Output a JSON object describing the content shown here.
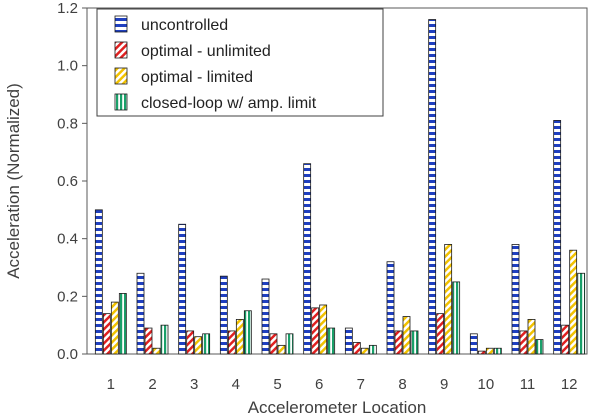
{
  "chart_data": {
    "type": "bar",
    "xlabel": "Accelerometer Location",
    "ylabel": "Acceleration (Normalized)",
    "ylim": [
      0,
      1.2
    ],
    "yticks": [
      "0.0",
      "0.2",
      "0.4",
      "0.6",
      "0.8",
      "1.0",
      "1.2"
    ],
    "categories": [
      "1",
      "2",
      "3",
      "4",
      "5",
      "6",
      "7",
      "8",
      "9",
      "10",
      "11",
      "12"
    ],
    "grid": false,
    "legend_position": "top-left",
    "series": [
      {
        "name": "uncontrolled",
        "pattern": "blue-stripes",
        "color": "#1f3fbf",
        "values": [
          0.5,
          0.28,
          0.45,
          0.27,
          0.26,
          0.66,
          0.09,
          0.32,
          1.16,
          0.07,
          0.38,
          0.81
        ]
      },
      {
        "name": "optimal - unlimited",
        "pattern": "red-diagonal",
        "color": "#e02020",
        "values": [
          0.14,
          0.09,
          0.08,
          0.08,
          0.07,
          0.16,
          0.04,
          0.08,
          0.14,
          0.01,
          0.08,
          0.1
        ]
      },
      {
        "name": "optimal - limited",
        "pattern": "yellow-diagonal",
        "color": "#f2c200",
        "values": [
          0.18,
          0.02,
          0.06,
          0.12,
          0.03,
          0.17,
          0.02,
          0.13,
          0.38,
          0.02,
          0.12,
          0.36
        ]
      },
      {
        "name": "closed-loop w/ amp. limit",
        "pattern": "green-vertical",
        "color": "#1aa06a",
        "values": [
          0.21,
          0.1,
          0.07,
          0.15,
          0.07,
          0.09,
          0.03,
          0.08,
          0.25,
          0.02,
          0.05,
          0.28
        ]
      }
    ]
  }
}
